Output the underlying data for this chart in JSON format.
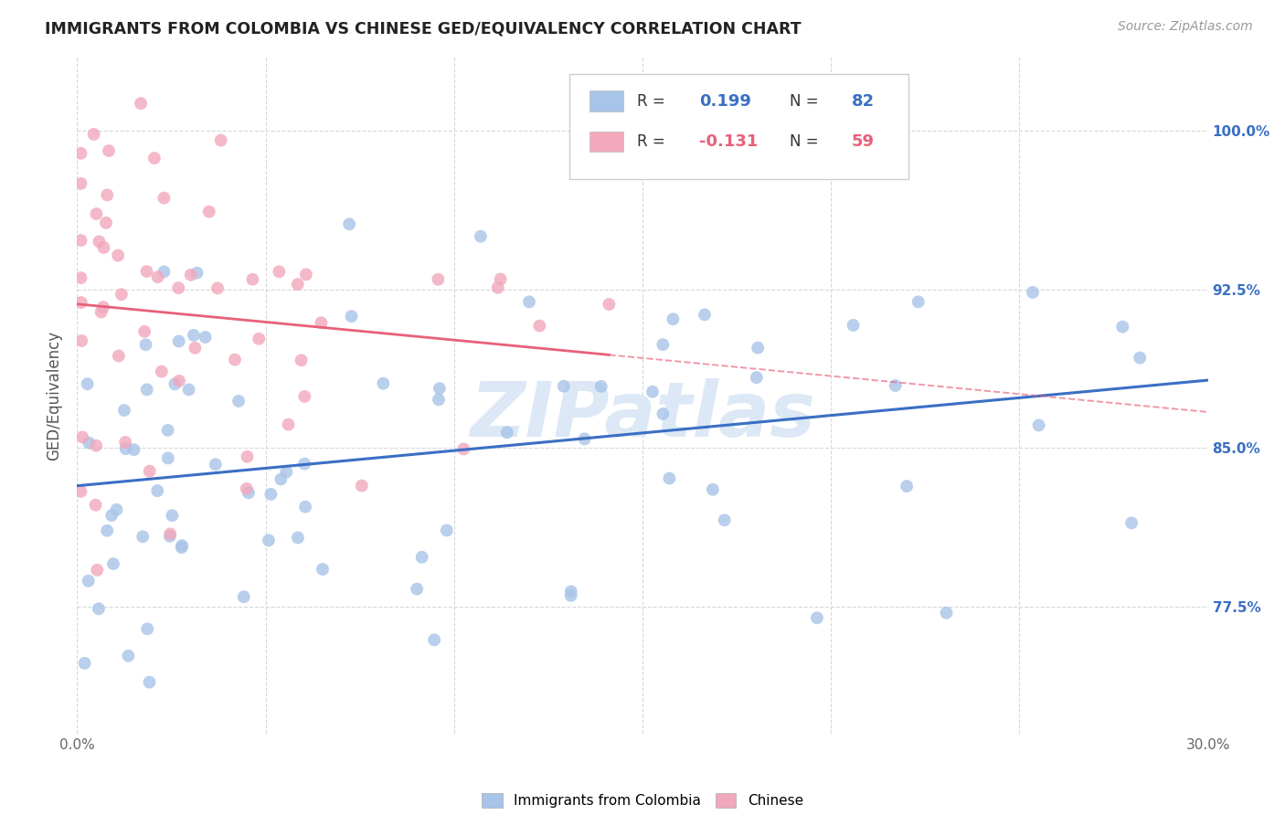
{
  "title": "IMMIGRANTS FROM COLOMBIA VS CHINESE GED/EQUIVALENCY CORRELATION CHART",
  "source": "Source: ZipAtlas.com",
  "ylabel": "GED/Equivalency",
  "xlim": [
    0.0,
    0.3
  ],
  "ylim": [
    0.715,
    1.035
  ],
  "xtick_positions": [
    0.0,
    0.05,
    0.1,
    0.15,
    0.2,
    0.25,
    0.3
  ],
  "xtick_labels": [
    "0.0%",
    "",
    "",
    "",
    "",
    "",
    "30.0%"
  ],
  "ytick_positions": [
    0.775,
    0.85,
    0.925,
    1.0
  ],
  "ytick_labels": [
    "77.5%",
    "85.0%",
    "92.5%",
    "100.0%"
  ],
  "legend_labels": [
    "Immigrants from Colombia",
    "Chinese"
  ],
  "blue_color": "#a8c4e8",
  "pink_color": "#f2a8bc",
  "blue_line_color": "#3a6fc4",
  "pink_line_color": "#e8607a",
  "R_blue": 0.199,
  "N_blue": 82,
  "R_pink": -0.131,
  "N_pink": 59,
  "watermark": "ZIPatlas",
  "background_color": "#ffffff",
  "grid_color": "#d8d8d8"
}
